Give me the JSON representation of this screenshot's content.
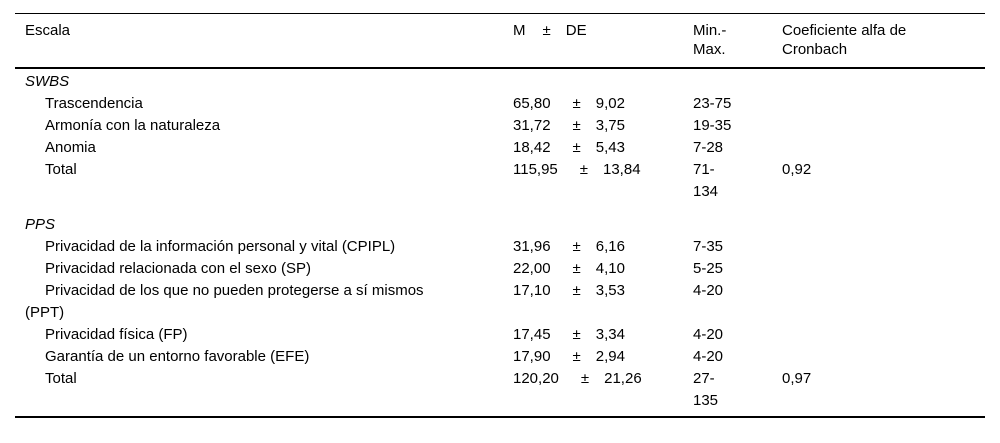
{
  "table": {
    "header": {
      "escala": "Escala",
      "m": "M",
      "pm": "±",
      "de": "DE",
      "minmax": "Min.-\nMax.",
      "cronbach": "Coeficiente alfa de\nCronbach"
    },
    "rows": [
      {
        "label": "SWBS",
        "m": "",
        "pm": "",
        "de": "",
        "range": "",
        "alpha": ""
      },
      {
        "label": "Trascendencia",
        "m": "65,80",
        "pm": "±",
        "de": "9,02",
        "range": "23-75",
        "alpha": ""
      },
      {
        "label": "Armonía con la naturaleza",
        "m": "31,72",
        "pm": "±",
        "de": "3,75",
        "range": "19-35",
        "alpha": ""
      },
      {
        "label": "Anomia",
        "m": "18,42",
        "pm": "±",
        "de": "5,43",
        "range": "7-28",
        "alpha": ""
      },
      {
        "label": "Total",
        "m": "115,95",
        "pm": "±",
        "de": "13,84",
        "range": "71-\n134",
        "alpha": "0,92"
      },
      {
        "label": "PPS",
        "m": "",
        "pm": "",
        "de": "",
        "range": "",
        "alpha": ""
      },
      {
        "label": "Privacidad de la información personal y vital (CPIPL)",
        "m": "31,96",
        "pm": "±",
        "de": "6,16",
        "range": "7-35",
        "alpha": ""
      },
      {
        "label": "Privacidad relacionada con el sexo (SP)",
        "m": "22,00",
        "pm": "±",
        "de": "4,10",
        "range": "5-25",
        "alpha": ""
      },
      {
        "label": "Privacidad de los que no pueden protegerse a sí mismos\n(PPT)",
        "m": "17,10",
        "pm": "±",
        "de": "3,53",
        "range": "4-20",
        "alpha": ""
      },
      {
        "label": "Privacidad física (FP)",
        "m": "17,45",
        "pm": "±",
        "de": "3,34",
        "range": "4-20",
        "alpha": ""
      },
      {
        "label": "Garantía de un entorno favorable (EFE)",
        "m": "17,90",
        "pm": "±",
        "de": "2,94",
        "range": "4-20",
        "alpha": ""
      },
      {
        "label": "Total",
        "m": "120,20",
        "pm": "±",
        "de": "21,26",
        "range": "27-\n135",
        "alpha": "0,97"
      }
    ]
  }
}
